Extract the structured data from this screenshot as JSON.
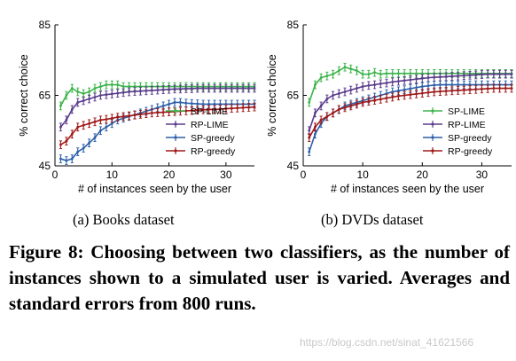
{
  "chart_data": [
    {
      "type": "line",
      "title": "",
      "xlabel": "# of instances seen by the user",
      "ylabel": "% correct choice",
      "xlim": [
        0,
        35
      ],
      "ylim": [
        45,
        85
      ],
      "xticks": [
        0,
        10,
        20,
        30
      ],
      "yticks": [
        45,
        65,
        85
      ],
      "grid": false,
      "legend_position": "bottom-right",
      "x": [
        1,
        2,
        3,
        4,
        5,
        6,
        7,
        8,
        9,
        10,
        11,
        12,
        13,
        14,
        15,
        16,
        17,
        18,
        19,
        20,
        21,
        22,
        23,
        24,
        25,
        26,
        27,
        28,
        29,
        30,
        31,
        32,
        33,
        34,
        35
      ],
      "series": [
        {
          "name": "SP-LIME",
          "color": "#3cb44b",
          "values": [
            62,
            65,
            67,
            66,
            65.5,
            66,
            67,
            67.5,
            68,
            68,
            68,
            67.5,
            67.5,
            67.5,
            67.5,
            67.5,
            67.5,
            67.5,
            67.5,
            67.5,
            67.5,
            67.5,
            67.5,
            67.5,
            67.5,
            67.5,
            67.5,
            67.5,
            67.5,
            67.5,
            67.5,
            67.5,
            67.5,
            67.5,
            67.5
          ]
        },
        {
          "name": "RP-LIME",
          "color": "#5b3b8c",
          "values": [
            56,
            58,
            61,
            63,
            63.5,
            64,
            64.5,
            65,
            65.2,
            65.4,
            65.6,
            65.8,
            66,
            66.1,
            66.2,
            66.3,
            66.4,
            66.5,
            66.6,
            66.7,
            66.8,
            66.8,
            66.9,
            66.9,
            67,
            67,
            67,
            67,
            67,
            67,
            67,
            67,
            67,
            67,
            67
          ]
        },
        {
          "name": "SP-greedy",
          "color": "#2c5fa8",
          "values": [
            47,
            46.5,
            47,
            49,
            50,
            51.5,
            53,
            55,
            56,
            57,
            58,
            58.5,
            59,
            59.5,
            60,
            60.5,
            61,
            61.5,
            62,
            62.5,
            63,
            63,
            62.8,
            62.7,
            62.6,
            62.5,
            62.5,
            62.5,
            62.5,
            62.5,
            62.5,
            62.5,
            62.5,
            62.5,
            62.5
          ]
        },
        {
          "name": "RP-greedy",
          "color": "#a01818",
          "values": [
            51,
            52,
            54,
            56,
            56.5,
            57,
            57.5,
            58,
            58.2,
            58.5,
            58.8,
            59,
            59.2,
            59.4,
            59.6,
            59.8,
            60,
            60.1,
            60.2,
            60.3,
            60.4,
            60.5,
            60.6,
            60.7,
            60.8,
            60.9,
            61,
            61,
            61.1,
            61.2,
            61.3,
            61.4,
            61.5,
            61.6,
            61.7
          ]
        }
      ]
    },
    {
      "type": "line",
      "title": "",
      "xlabel": "# of instances seen by the user",
      "ylabel": "% correct choice",
      "xlim": [
        0,
        35
      ],
      "ylim": [
        45,
        85
      ],
      "xticks": [
        0,
        10,
        20,
        30
      ],
      "yticks": [
        45,
        65,
        85
      ],
      "grid": false,
      "legend_position": "bottom-right",
      "x": [
        1,
        2,
        3,
        4,
        5,
        6,
        7,
        8,
        9,
        10,
        11,
        12,
        13,
        14,
        15,
        16,
        17,
        18,
        19,
        20,
        21,
        22,
        23,
        24,
        25,
        26,
        27,
        28,
        29,
        30,
        31,
        32,
        33,
        34,
        35
      ],
      "series": [
        {
          "name": "SP-LIME",
          "color": "#3cb44b",
          "values": [
            63,
            68,
            70,
            70.5,
            71,
            72,
            73,
            72.5,
            72,
            71,
            71,
            71.5,
            71,
            71.2,
            71.2,
            71.2,
            71.2,
            71.2,
            71.2,
            71.2,
            71.2,
            71.2,
            71.2,
            71.2,
            71.2,
            71.2,
            71.2,
            71.2,
            71.2,
            71.2,
            71.2,
            71.2,
            71.2,
            71.2,
            71.2
          ]
        },
        {
          "name": "RP-LIME",
          "color": "#5b3b8c",
          "values": [
            55,
            60,
            62,
            64,
            65,
            65.5,
            66,
            66.5,
            67,
            67.5,
            67.8,
            68,
            68.3,
            68.5,
            68.8,
            69,
            69.2,
            69.4,
            69.6,
            69.8,
            70,
            70.1,
            70.2,
            70.3,
            70.4,
            70.5,
            70.6,
            70.7,
            70.8,
            70.9,
            71,
            71,
            71,
            71,
            71
          ]
        },
        {
          "name": "SP-greedy",
          "color": "#2c5fa8",
          "values": [
            49,
            54,
            57,
            59,
            60,
            61,
            62,
            62.5,
            63,
            63.5,
            64,
            64.5,
            65,
            65.5,
            66,
            66.3,
            66.6,
            66.9,
            67.2,
            67.5,
            67.7,
            67.9,
            68,
            68,
            68,
            68,
            68,
            68,
            68,
            68,
            68,
            68,
            68,
            68,
            68
          ]
        },
        {
          "name": "RP-greedy",
          "color": "#a01818",
          "values": [
            53,
            56,
            58,
            59,
            60,
            61,
            61.5,
            62,
            62.5,
            63,
            63.3,
            63.6,
            63.9,
            64.2,
            64.5,
            64.8,
            65,
            65.2,
            65.4,
            65.6,
            65.8,
            66,
            66.1,
            66.2,
            66.3,
            66.4,
            66.5,
            66.6,
            66.7,
            66.8,
            66.9,
            67,
            67,
            67,
            67
          ]
        }
      ]
    }
  ],
  "subcaptions": [
    "(a) Books dataset",
    "(b) DVDs dataset"
  ],
  "caption": "Figure 8: Choosing between two classifiers, as the number of instances shown to a simulated user is varied.  Averages and standard errors from 800 runs.",
  "watermark": "https://blog.csdn.net/sinat_41621566"
}
